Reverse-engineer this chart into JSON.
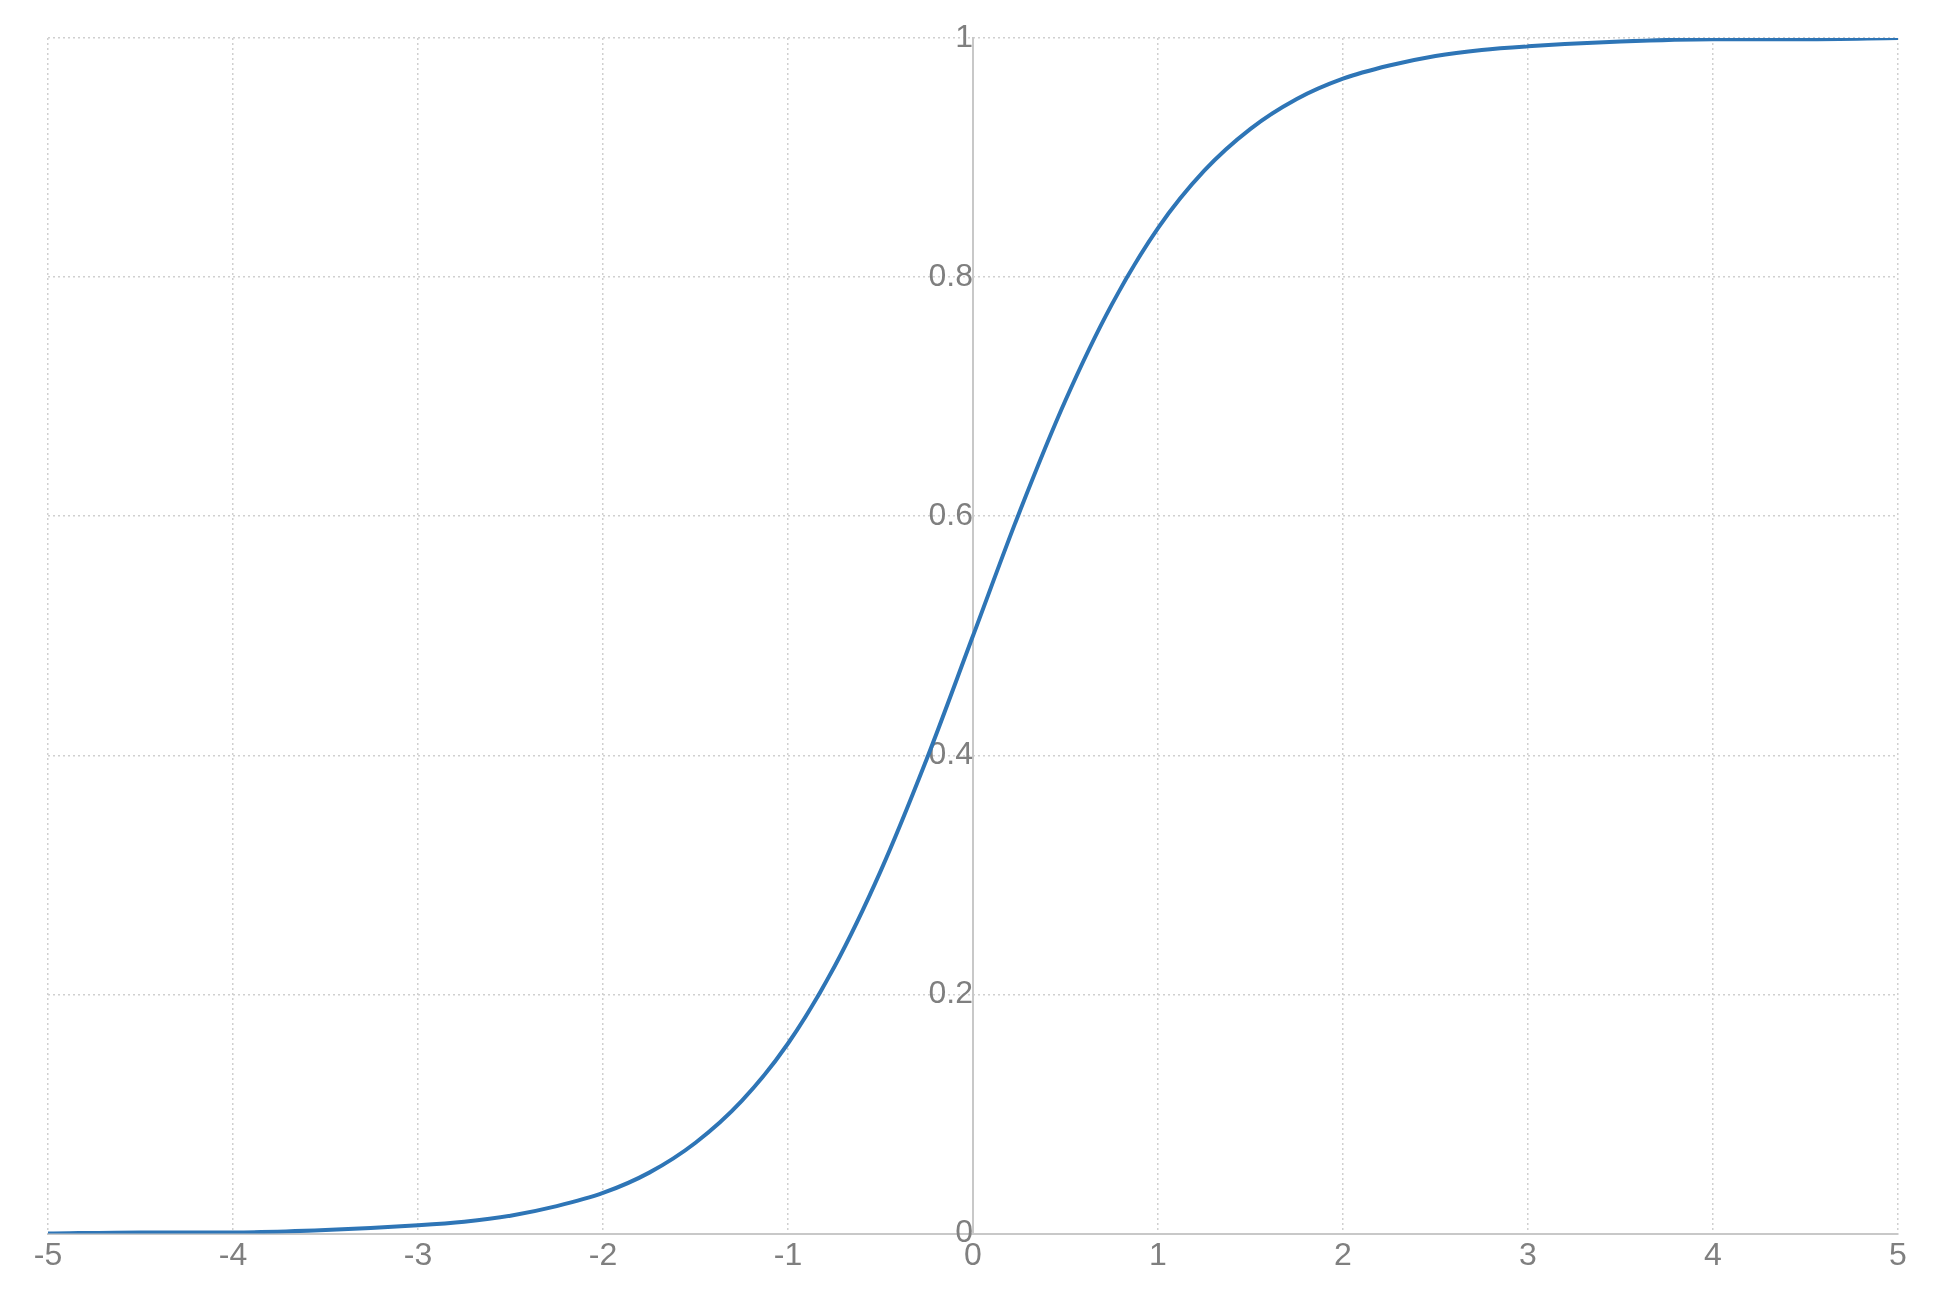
{
  "chart_data": {
    "type": "line",
    "x": [
      -5,
      -4.5,
      -4,
      -3.5,
      -3,
      -2.75,
      -2.5,
      -2.25,
      -2,
      -1.75,
      -1.5,
      -1.25,
      -1,
      -0.75,
      -0.5,
      -0.25,
      0,
      0.25,
      0.5,
      0.75,
      1,
      1.25,
      1.5,
      1.75,
      2,
      2.25,
      2.5,
      2.75,
      3,
      3.5,
      4,
      4.5,
      5
    ],
    "series": [
      {
        "color": "#2e75b6",
        "values": [
          0,
          0.001,
          0.001,
          0.003,
          0.007,
          0.01,
          0.015,
          0.023,
          0.034,
          0.051,
          0.076,
          0.111,
          0.159,
          0.223,
          0.303,
          0.397,
          0.5,
          0.603,
          0.697,
          0.777,
          0.841,
          0.889,
          0.924,
          0.949,
          0.966,
          0.977,
          0.985,
          0.99,
          0.993,
          0.997,
          0.999,
          0.999,
          1
        ]
      }
    ],
    "xlim": [
      -5,
      5
    ],
    "xticks": [
      -5,
      -4,
      -3,
      -2,
      -1,
      0,
      1,
      2,
      3,
      4,
      5
    ],
    "ylim": [
      0,
      1
    ],
    "yticks": [
      0,
      0.2,
      0.4,
      0.6,
      0.8,
      1
    ],
    "grid": true,
    "legend": false,
    "marker": "none",
    "line_style": "solid"
  }
}
